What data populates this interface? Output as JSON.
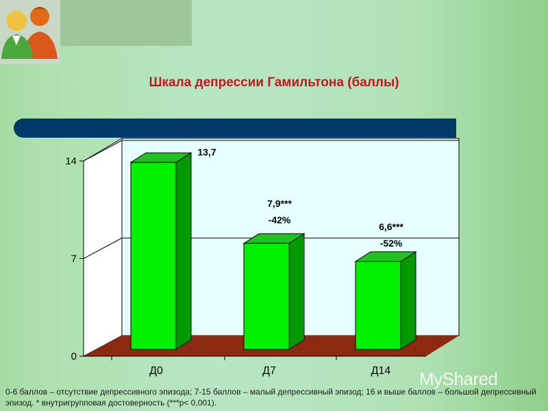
{
  "slide": {
    "title": "Шкала депрессии Гамильтона (баллы)",
    "footnote": "0-6 баллов – отсутствие депрессивного эпизода; 7-15 баллов – малый депрессивный эпизод; 16 и выше баллов – большой депрессивный эпизод. * внутригрупповая достоверность (***p< 0,001).",
    "watermark": "MyShared"
  },
  "colors": {
    "bar_front": "#00f000",
    "bar_side": "#009a00",
    "bar_top": "#1fc21f",
    "floor": "#8b2a10",
    "back_wall": "#e6ffff",
    "side_wall": "#ffffff",
    "title": "#c0191c",
    "band": "#003a66"
  },
  "chart_data": {
    "type": "bar",
    "categories": [
      "Д0",
      "Д7",
      "Д14"
    ],
    "values": [
      13.7,
      7.9,
      6.6
    ],
    "value_labels": [
      "13,7",
      "7,9***",
      "6,6***"
    ],
    "change_labels": [
      "",
      "-42%",
      "-52%"
    ],
    "yticks": [
      "0",
      "7",
      "14"
    ],
    "ytick_values": [
      0,
      7,
      14
    ],
    "ylim": [
      0,
      14
    ],
    "grid": true,
    "three_d": true
  }
}
